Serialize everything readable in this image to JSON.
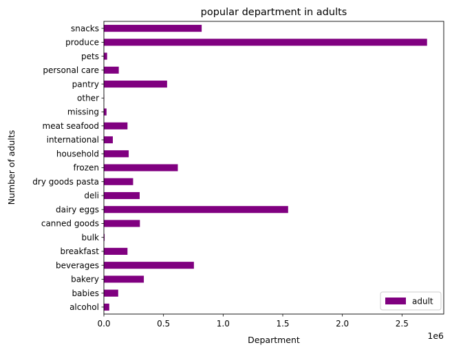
{
  "chart_data": {
    "type": "bar",
    "orientation": "horizontal",
    "title": "popular department in adults",
    "xlabel": "Department",
    "ylabel": "Number of adults",
    "x_offset_label": "1e6",
    "xlim": [
      0,
      2.85
    ],
    "xticks": [
      0,
      0.5,
      1.0,
      1.5,
      2.0,
      2.5
    ],
    "xtick_labels": [
      "0.0",
      "0.5",
      "1.0",
      "1.5",
      "2.0",
      "2.5"
    ],
    "grid": false,
    "legend_position": "lower-right",
    "categories": [
      "alcohol",
      "babies",
      "bakery",
      "beverages",
      "breakfast",
      "bulk",
      "canned goods",
      "dairy eggs",
      "deli",
      "dry goods pasta",
      "frozen",
      "household",
      "international",
      "meat seafood",
      "missing",
      "other",
      "pantry",
      "personal care",
      "pets",
      "produce",
      "snacks"
    ],
    "series": [
      {
        "name": "adult",
        "color": "#800080",
        "values": [
          0.045,
          0.12,
          0.335,
          0.755,
          0.198,
          0.006,
          0.302,
          1.545,
          0.3,
          0.245,
          0.62,
          0.208,
          0.075,
          0.198,
          0.022,
          0.003,
          0.53,
          0.125,
          0.027,
          2.71,
          0.82
        ]
      }
    ]
  }
}
